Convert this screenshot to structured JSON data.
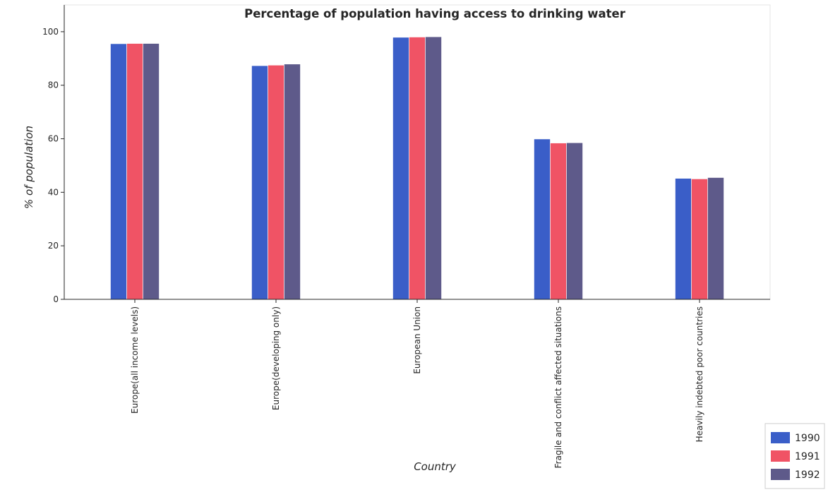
{
  "chart_data": {
    "type": "bar",
    "title": "Percentage of population having access to drinking water",
    "xlabel": "Country",
    "ylabel": "% of population",
    "categories": [
      "Europe(all income levels)",
      "Europe(developing only)",
      "European Union",
      "Fragile and conflict affected situations",
      "Heavily indebted poor countries"
    ],
    "series": [
      {
        "name": "1990",
        "color": "#3a5ec8",
        "values": [
          95.5,
          87.3,
          97.9,
          59.9,
          45.2
        ]
      },
      {
        "name": "1991",
        "color": "#f05365",
        "values": [
          95.6,
          87.5,
          98.0,
          58.4,
          45.0
        ]
      },
      {
        "name": "1992",
        "color": "#5e5a8a",
        "values": [
          95.6,
          87.9,
          98.1,
          58.5,
          45.5
        ]
      }
    ],
    "ylim": [
      0,
      110
    ],
    "yticks": [
      0,
      20,
      40,
      60,
      80,
      100
    ],
    "grid": false,
    "legend_position": "bottom-right"
  }
}
